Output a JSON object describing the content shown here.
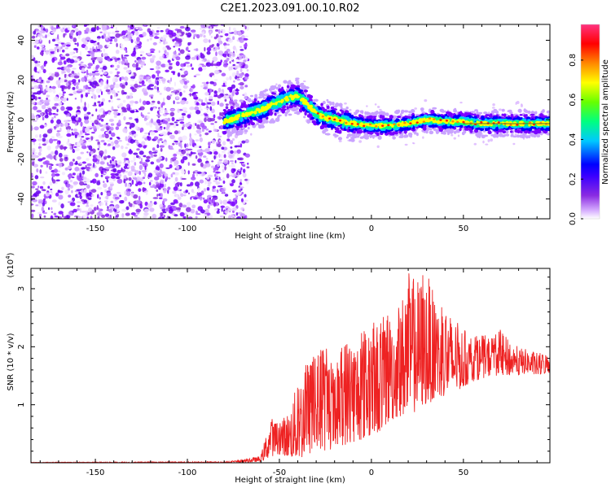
{
  "title": "C2E1.2023.091.00.10.R02",
  "chart_data": [
    {
      "type": "heatmap",
      "xlabel": "Height of straight line (km)",
      "ylabel": "Frequency (Hz)",
      "xlim": [
        -185,
        97
      ],
      "ylim": [
        -50,
        48
      ],
      "xticks": [
        -150,
        -100,
        -50,
        0,
        50
      ],
      "yticks": [
        -40,
        -20,
        0,
        20,
        40
      ],
      "colorbar": {
        "label": "Normalized spectral amplitude",
        "range": [
          0,
          0.98
        ],
        "ticks": [
          "0.0",
          "0.2",
          "0.4",
          "0.6",
          "0.8"
        ],
        "colors": [
          "#ffffff",
          "#d9b3ff",
          "#8a2be2",
          "#3a00ff",
          "#0000ff",
          "#00c8ff",
          "#00ff80",
          "#66ff00",
          "#ffff00",
          "#ff8800",
          "#ff0000",
          "#ff3380"
        ]
      },
      "noise_region_x": [
        -185,
        -70
      ],
      "signal_ridge": {
        "x": [
          -80,
          -70,
          -60,
          -50,
          -45,
          -40,
          -35,
          -30,
          -25,
          -20,
          -10,
          0,
          10,
          20,
          30,
          40,
          50,
          60,
          70,
          80,
          90,
          97
        ],
        "y": [
          -1,
          2,
          5,
          9,
          11,
          12,
          8,
          3,
          1,
          0,
          -2,
          -3,
          -3,
          -2,
          0,
          -1,
          -1,
          -2,
          -2,
          -2,
          -2,
          -2
        ]
      }
    },
    {
      "type": "line",
      "xlabel": "Height of straight line (km)",
      "ylabel": "SNR (10 * v/v)",
      "y_multiplier": "(x10^4)",
      "xlim": [
        -185,
        97
      ],
      "ylim": [
        0,
        3.35
      ],
      "xticks": [
        -150,
        -100,
        -50,
        0,
        50
      ],
      "yticks": [
        1,
        2,
        3
      ],
      "series": [
        {
          "color": "#ee2222",
          "envelope": {
            "x": [
              -185,
              -80,
              -70,
              -60,
              -55,
              -50,
              -45,
              -40,
              -35,
              -30,
              -25,
              -20,
              -15,
              -10,
              -5,
              0,
              5,
              10,
              15,
              20,
              25,
              30,
              35,
              40,
              45,
              50,
              55,
              60,
              65,
              70,
              75,
              80,
              85,
              90,
              97
            ],
            "low": [
              0,
              0,
              0.005,
              0.02,
              0.1,
              0.15,
              0.1,
              0.05,
              0.1,
              0.2,
              0.2,
              0.25,
              0.3,
              0.35,
              0.4,
              0.45,
              0.55,
              0.7,
              0.8,
              0.8,
              0.9,
              1.0,
              1.1,
              1.15,
              1.2,
              1.3,
              1.4,
              1.45,
              1.5,
              1.5,
              1.5,
              1.5,
              1.55,
              1.5,
              1.55
            ],
            "high": [
              0.01,
              0.02,
              0.05,
              0.12,
              0.8,
              0.7,
              0.9,
              1.4,
              1.8,
              1.9,
              2.1,
              1.6,
              2.2,
              2.2,
              2.3,
              2.4,
              2.5,
              2.6,
              2.7,
              3.3,
              3.2,
              3.3,
              2.8,
              2.7,
              2.5,
              2.3,
              2.2,
              2.2,
              2.2,
              2.3,
              2.1,
              2.0,
              1.95,
              1.9,
              1.9
            ]
          }
        }
      ]
    }
  ]
}
